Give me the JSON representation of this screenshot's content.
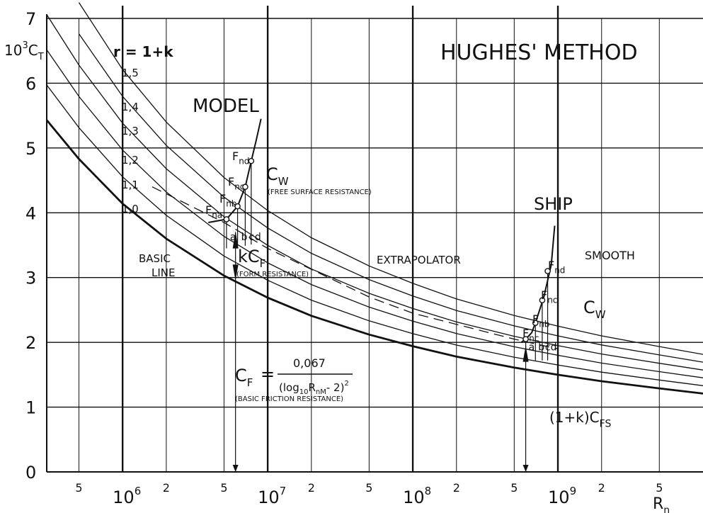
{
  "chart_data": {
    "type": "line",
    "title": "HUGHES' METHOD",
    "ylabel_parts": {
      "base": "10",
      "exp": "3",
      "main": "C",
      "sub": "T"
    },
    "xlabel_parts": {
      "main": "R",
      "sub": "n"
    },
    "x_scale": "log",
    "xlim": [
      300000,
      10000000000
    ],
    "ylim": [
      0,
      7
    ],
    "grid": true,
    "y_ticks": [
      "0",
      "1",
      "2",
      "3",
      "4",
      "5",
      "6",
      "7"
    ],
    "x_ticks_minor": [
      {
        "value": 500000,
        "label": "5"
      },
      {
        "value": 2000000,
        "label": "2"
      },
      {
        "value": 5000000,
        "label": "5"
      },
      {
        "value": 20000000,
        "label": "2"
      },
      {
        "value": 50000000,
        "label": "5"
      },
      {
        "value": 200000000,
        "label": "2"
      },
      {
        "value": 500000000,
        "label": "5"
      },
      {
        "value": 2000000000,
        "label": "2"
      },
      {
        "value": 5000000000,
        "label": "5"
      }
    ],
    "x_ticks_major": [
      {
        "value": 1000000,
        "base": "10",
        "exp": "6"
      },
      {
        "value": 10000000,
        "base": "10",
        "exp": "7"
      },
      {
        "value": 100000000,
        "base": "10",
        "exp": "8"
      },
      {
        "value": 1000000000,
        "base": "10",
        "exp": "9"
      }
    ],
    "r_header": "r = 1+k",
    "series": [
      {
        "name": "1,5",
        "r": 1.5
      },
      {
        "name": "1,4",
        "r": 1.4
      },
      {
        "name": "1,3",
        "r": 1.3
      },
      {
        "name": "1,2",
        "r": 1.2
      },
      {
        "name": "1,1",
        "r": 1.1
      },
      {
        "name": "1,0",
        "r": 1.0
      }
    ],
    "curve_x": [
      300000,
      500000,
      1000000,
      2000000,
      5000000,
      10000000,
      20000000,
      50000000,
      100000000,
      200000000,
      500000000,
      1000000000,
      2000000000,
      5000000000,
      10000000000
    ],
    "basic_line_cf": [
      5.43,
      4.83,
      4.14,
      3.6,
      3.03,
      2.69,
      2.41,
      2.12,
      1.94,
      1.78,
      1.61,
      1.5,
      1.4,
      1.29,
      1.21
    ],
    "extrapolator_dashed": {
      "x": [
        1600000,
        5000000,
        10000000,
        50000000,
        100000000,
        500000000,
        1000000000
      ],
      "y": [
        4.4,
        3.85,
        3.45,
        2.7,
        2.45,
        2.05,
        1.9
      ]
    },
    "model": {
      "label": "MODEL",
      "curve": {
        "x": [
          3900000,
          5200000,
          6200000,
          7000000,
          7700000,
          8300000,
          9000000
        ],
        "y": [
          3.85,
          3.9,
          4.1,
          4.4,
          4.8,
          5.1,
          5.45
        ]
      },
      "points": [
        {
          "name": "F_na",
          "x": 5200000,
          "y": 3.9,
          "letter": "a"
        },
        {
          "name": "F_nb",
          "x": 6200000,
          "y": 4.1,
          "letter": "b"
        },
        {
          "name": "F_nc",
          "x": 7000000,
          "y": 4.4,
          "letter": "c"
        },
        {
          "name": "F_nd",
          "x": 7700000,
          "y": 4.8,
          "letter": "d"
        }
      ],
      "ref_x": 6000000,
      "ref_y": 3.0
    },
    "ship": {
      "label": "SHIP",
      "curve": {
        "x": [
          560000000,
          600000000,
          660000000,
          700000000,
          800000000,
          900000000,
          950000000
        ],
        "y": [
          2.0,
          2.05,
          2.15,
          2.3,
          2.7,
          3.2,
          3.8
        ]
      },
      "points": [
        {
          "name": "F_nc_low",
          "x": 600000000,
          "y": 2.05,
          "letter": "a"
        },
        {
          "name": "F_nb",
          "x": 700000000,
          "y": 2.3,
          "letter": "b"
        },
        {
          "name": "F_nc",
          "x": 780000000,
          "y": 2.65,
          "letter": "c"
        },
        {
          "name": "F_nd",
          "x": 850000000,
          "y": 3.1,
          "letter": "d"
        }
      ],
      "ref_x": 600000000
    },
    "annotations": {
      "model": "MODEL",
      "ship": "SHIP",
      "smooth": "SMOOTH",
      "extrapolator": "EXTRAPOLATOR",
      "basic_line_1": "BASIC",
      "basic_line_2": "LINE",
      "free_surface": "(FREE SURFACE RESISTANCE)",
      "form_resistance": "(FORM RESISTANCE)",
      "basic_friction": "(BASIC FRICTION RESISTANCE)",
      "kcf": {
        "k": "kC",
        "sub": "F"
      },
      "cw_model": {
        "main": "C",
        "sub": "W"
      },
      "cw_ship": {
        "main": "C",
        "sub": "W"
      },
      "cfs": {
        "main": "(1+k)C",
        "sub": "FS"
      },
      "formula": {
        "lhs_main": "C",
        "lhs_sub": "F",
        "eq": "=",
        "numerator": "0,067",
        "den_pre": "(log",
        "den_sub10": "10",
        "den_R": "R",
        "den_sub": "nM",
        "den_post": "- 2)",
        "den_exp": "2"
      },
      "fn_model": [
        {
          "main": "F",
          "sub": "na"
        },
        {
          "main": "F",
          "sub": "nb"
        },
        {
          "main": "F",
          "sub": "nc"
        },
        {
          "main": "F",
          "sub": "nd"
        }
      ],
      "fn_ship": [
        {
          "main": "F",
          "sub": "nc"
        },
        {
          "main": "F",
          "sub": "nb"
        },
        {
          "main": "F",
          "sub": "nc"
        },
        {
          "main": "F",
          "sub": "nd"
        }
      ],
      "letters": [
        "a",
        "b",
        "c",
        "d"
      ]
    }
  }
}
